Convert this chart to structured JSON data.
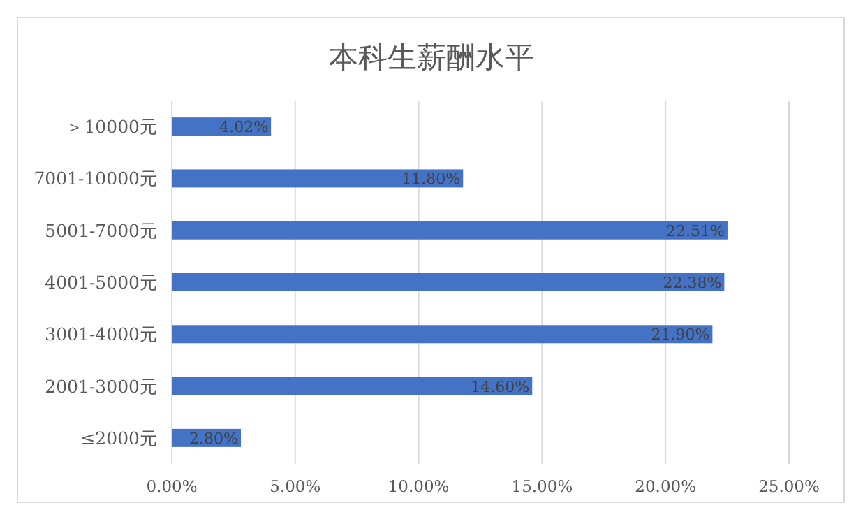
{
  "chart_data": {
    "type": "bar",
    "orientation": "horizontal",
    "title": "本科生薪酬水平",
    "categories": [
      "＞10000元",
      "7001-10000元",
      "5001-7000元",
      "4001-5000元",
      "3001-4000元",
      "2001-3000元",
      "≤2000元"
    ],
    "values": [
      4.02,
      11.8,
      22.51,
      22.38,
      21.9,
      14.6,
      2.8
    ],
    "value_labels": [
      "4.02%",
      "11.80%",
      "22.51%",
      "22.38%",
      "21.90%",
      "14.60%",
      "2.80%"
    ],
    "color": "#4472c4",
    "xlim": [
      0,
      25
    ],
    "xticks": [
      {
        "value": 0,
        "label": "0.00%"
      },
      {
        "value": 5,
        "label": "5.00%"
      },
      {
        "value": 10,
        "label": "10.00%"
      },
      {
        "value": 15,
        "label": "15.00%"
      },
      {
        "value": 20,
        "label": "20.00%"
      },
      {
        "value": 25,
        "label": "25.00%"
      }
    ],
    "grid": "x"
  }
}
